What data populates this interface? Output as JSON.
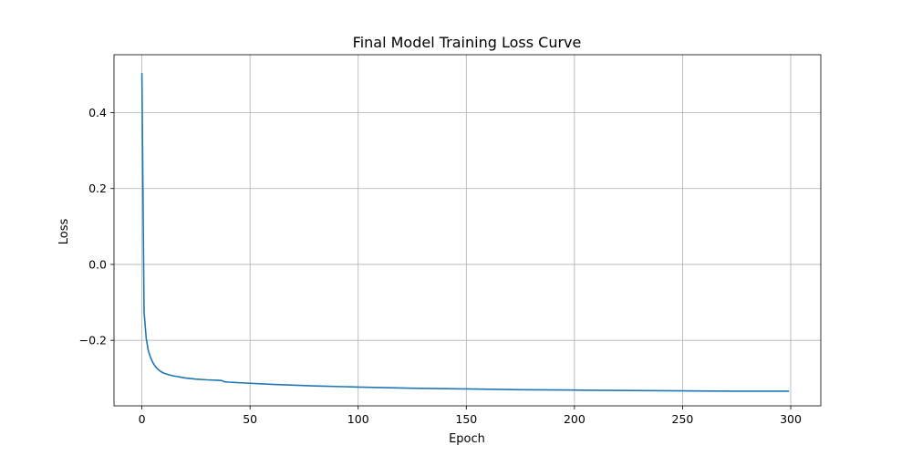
{
  "chart_data": {
    "type": "line",
    "title": "Final Model Training Loss Curve",
    "xlabel": "Epoch",
    "ylabel": "Loss",
    "xlim": [
      -12.9,
      313.9
    ],
    "ylim": [
      -0.3725,
      0.5525
    ],
    "xticks": [
      0,
      50,
      100,
      150,
      200,
      250,
      300
    ],
    "xtick_labels": [
      "0",
      "50",
      "100",
      "150",
      "200",
      "250",
      "300"
    ],
    "yticks": [
      -0.2,
      0.0,
      0.2,
      0.4
    ],
    "ytick_labels": [
      "−0.2",
      "0.0",
      "0.2",
      "0.4"
    ],
    "grid": true,
    "legend": "none",
    "series": [
      {
        "color": "#1f77b4",
        "x": [
          0,
          1,
          2,
          3,
          4,
          5,
          6,
          7,
          8,
          9,
          10,
          12,
          14,
          16,
          18,
          20,
          25,
          30,
          35,
          37,
          38,
          40,
          50,
          60,
          70,
          80,
          100,
          125,
          150,
          175,
          200,
          225,
          250,
          275,
          299
        ],
        "y": [
          0.503,
          -0.125,
          -0.195,
          -0.228,
          -0.245,
          -0.258,
          -0.267,
          -0.274,
          -0.279,
          -0.283,
          -0.286,
          -0.29,
          -0.293,
          -0.295,
          -0.297,
          -0.299,
          -0.302,
          -0.304,
          -0.305,
          -0.306,
          -0.309,
          -0.31,
          -0.313,
          -0.316,
          -0.318,
          -0.32,
          -0.323,
          -0.326,
          -0.328,
          -0.33,
          -0.331,
          -0.332,
          -0.333,
          -0.334,
          -0.334
        ]
      }
    ]
  }
}
